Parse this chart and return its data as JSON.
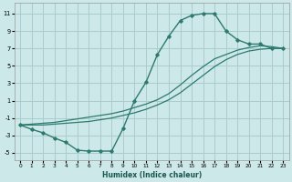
{
  "xlabel": "Humidex (Indice chaleur)",
  "bg_color": "#cce8e8",
  "grid_color": "#aacccc",
  "line_color": "#2d7a6e",
  "xlim": [
    -0.5,
    23.5
  ],
  "ylim": [
    -5.8,
    12.2
  ],
  "xticks": [
    0,
    1,
    2,
    3,
    4,
    5,
    6,
    7,
    8,
    9,
    10,
    11,
    12,
    13,
    14,
    15,
    16,
    17,
    18,
    19,
    20,
    21,
    22,
    23
  ],
  "yticks": [
    -5,
    -3,
    -1,
    1,
    3,
    5,
    7,
    9,
    11
  ],
  "curve_main_x": [
    0,
    1,
    2,
    3,
    4,
    5,
    6,
    7,
    8,
    9,
    10,
    11,
    12,
    13,
    14,
    15,
    16,
    17,
    18,
    19,
    20,
    21,
    22,
    23
  ],
  "curve_main_y": [
    -1.8,
    -2.3,
    -2.7,
    -3.3,
    -3.8,
    -4.7,
    -4.8,
    -4.8,
    -4.8,
    -2.2,
    1.0,
    3.1,
    6.3,
    8.4,
    10.2,
    10.8,
    11.0,
    11.0,
    9.0,
    8.0,
    7.5,
    7.5,
    7.0,
    7.0
  ],
  "curve_upper_x": [
    0,
    1,
    2,
    3,
    4,
    5,
    6,
    7,
    8,
    9,
    10,
    11,
    12,
    13,
    14,
    15,
    16,
    17,
    18,
    19,
    20,
    21,
    22,
    23
  ],
  "curve_upper_y": [
    -1.8,
    -1.7,
    -1.6,
    -1.5,
    -1.3,
    -1.1,
    -0.9,
    -0.7,
    -0.5,
    -0.2,
    0.2,
    0.6,
    1.1,
    1.8,
    2.8,
    3.9,
    4.9,
    5.8,
    6.3,
    6.8,
    7.1,
    7.3,
    7.2,
    7.0
  ],
  "curve_lower_x": [
    0,
    1,
    2,
    3,
    4,
    5,
    6,
    7,
    8,
    9,
    10,
    11,
    12,
    13,
    14,
    15,
    16,
    17,
    18,
    19,
    20,
    21,
    22,
    23
  ],
  "curve_lower_y": [
    -1.8,
    -1.8,
    -1.8,
    -1.7,
    -1.6,
    -1.5,
    -1.4,
    -1.2,
    -1.0,
    -0.7,
    -0.4,
    0.0,
    0.5,
    1.1,
    1.9,
    2.9,
    3.9,
    4.9,
    5.7,
    6.3,
    6.7,
    6.9,
    7.0,
    7.0
  ]
}
